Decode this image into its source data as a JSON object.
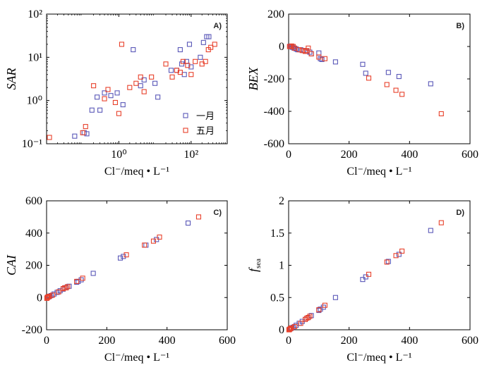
{
  "colors": {
    "jan": "#5a58b8",
    "may": "#e8412b",
    "axis": "#000000"
  },
  "chart_data": [
    {
      "id": "A",
      "type": "scatter",
      "panel_label": "A)",
      "ylabel": "SAR",
      "xlabel": "Cl⁻/meq • L⁻¹",
      "xscale": "log",
      "yscale": "log",
      "xlim": [
        0.01,
        1000
      ],
      "ylim": [
        0.1,
        100
      ],
      "xticks": [
        1,
        100
      ],
      "xtick_labels": [
        "10⁰",
        "10²"
      ],
      "yticks": [
        0.1,
        1,
        10,
        100
      ],
      "ytick_labels": [
        "10⁻¹",
        "10⁰",
        "10¹",
        "10²"
      ],
      "legend_position": "bottom-right",
      "series": [
        {
          "name": "一月",
          "color": "#5a58b8",
          "x": [
            0.06,
            0.11,
            0.13,
            0.18,
            0.25,
            0.3,
            0.4,
            0.6,
            0.9,
            1.3,
            2.5,
            4,
            5,
            10,
            12,
            28,
            40,
            50,
            55,
            65,
            75,
            90,
            100,
            180,
            220,
            270,
            310
          ],
          "y": [
            0.15,
            0.18,
            0.17,
            0.6,
            1.2,
            0.6,
            1.5,
            1.3,
            1.5,
            0.8,
            15,
            2.2,
            3,
            2.5,
            1.2,
            5,
            5,
            15,
            7,
            4,
            8,
            20,
            6,
            10,
            22,
            30,
            30
          ]
        },
        {
          "name": "五月",
          "color": "#e8412b",
          "x": [
            0.012,
            0.1,
            0.12,
            0.2,
            0.4,
            0.5,
            0.8,
            1,
            1.2,
            2,
            3,
            4,
            5,
            8,
            20,
            30,
            40,
            50,
            60,
            80,
            100,
            130,
            200,
            250,
            300,
            350,
            450
          ],
          "y": [
            0.14,
            0.18,
            0.25,
            2.2,
            1.1,
            1.8,
            0.9,
            0.5,
            20,
            2,
            2.5,
            3.5,
            1.6,
            3.5,
            7,
            3.5,
            5,
            4.5,
            8,
            6.5,
            4,
            8,
            7,
            8,
            15,
            17,
            20
          ]
        }
      ]
    },
    {
      "id": "B",
      "type": "scatter",
      "panel_label": "B)",
      "ylabel": "BEX",
      "xlabel": "Cl⁻/meq • L⁻¹",
      "xlim": [
        0,
        600
      ],
      "ylim": [
        -600,
        200
      ],
      "xticks": [
        0,
        200,
        400,
        600
      ],
      "yticks": [
        200,
        0,
        -200,
        -400,
        -600
      ],
      "series": [
        {
          "name": "一月",
          "color": "#5a58b8",
          "x": [
            5,
            8,
            12,
            18,
            25,
            30,
            40,
            50,
            60,
            70,
            75,
            100,
            105,
            110,
            155,
            245,
            255,
            330,
            365,
            470
          ],
          "y": [
            2,
            0,
            -5,
            -10,
            -15,
            -20,
            -20,
            -25,
            -30,
            -35,
            -45,
            -40,
            -75,
            -80,
            -95,
            -110,
            -165,
            -160,
            -185,
            -230
          ]
        },
        {
          "name": "五月",
          "color": "#e8412b",
          "x": [
            3,
            6,
            10,
            15,
            20,
            35,
            45,
            55,
            60,
            65,
            75,
            100,
            120,
            265,
            325,
            355,
            375,
            505
          ],
          "y": [
            0,
            0,
            3,
            0,
            -10,
            -20,
            -25,
            -30,
            -25,
            -10,
            -45,
            -65,
            -75,
            -195,
            -235,
            -270,
            -295,
            -415
          ]
        }
      ]
    },
    {
      "id": "C",
      "type": "scatter",
      "panel_label": "C)",
      "ylabel": "CAI",
      "xlabel": "Cl⁻/meq • L⁻¹",
      "xlim": [
        0,
        600
      ],
      "ylim": [
        -200,
        600
      ],
      "xticks": [
        0,
        200,
        400,
        600
      ],
      "yticks": [
        600,
        400,
        200,
        0,
        -200
      ],
      "series": [
        {
          "name": "一月",
          "color": "#5a58b8",
          "x": [
            3,
            8,
            15,
            25,
            35,
            45,
            55,
            65,
            75,
            100,
            105,
            115,
            155,
            245,
            255,
            330,
            365,
            470
          ],
          "y": [
            2,
            5,
            12,
            22,
            32,
            42,
            52,
            62,
            70,
            95,
            100,
            110,
            150,
            245,
            255,
            325,
            360,
            462
          ]
        },
        {
          "name": "五月",
          "color": "#e8412b",
          "x": [
            1,
            2,
            4,
            6,
            10,
            20,
            40,
            55,
            60,
            65,
            70,
            100,
            120,
            265,
            325,
            355,
            375,
            505
          ],
          "y": [
            -5,
            0,
            2,
            5,
            8,
            15,
            35,
            55,
            60,
            60,
            68,
            100,
            120,
            265,
            325,
            350,
            375,
            500
          ]
        }
      ]
    },
    {
      "id": "D",
      "type": "scatter",
      "panel_label": "D)",
      "ylabel": "f",
      "ylabel_sub": "sea",
      "xlabel": "Cl⁻/meq • L⁻¹",
      "xlim": [
        0,
        600
      ],
      "ylim": [
        0,
        2
      ],
      "xticks": [
        0,
        200,
        400,
        600
      ],
      "ytick_values": [
        2,
        1.5,
        1,
        0.5,
        0
      ],
      "ytick_labels": [
        "2",
        "1.5",
        "1",
        "0.5",
        "0"
      ],
      "series": [
        {
          "name": "一月",
          "color": "#5a58b8",
          "x": [
            3,
            8,
            15,
            25,
            35,
            45,
            55,
            65,
            75,
            100,
            105,
            115,
            155,
            245,
            255,
            330,
            365,
            470
          ],
          "y": [
            0.01,
            0.02,
            0.04,
            0.07,
            0.1,
            0.13,
            0.16,
            0.19,
            0.22,
            0.3,
            0.32,
            0.35,
            0.5,
            0.78,
            0.82,
            1.06,
            1.17,
            1.54
          ]
        },
        {
          "name": "五月",
          "color": "#e8412b",
          "x": [
            1,
            2,
            4,
            6,
            10,
            20,
            40,
            55,
            60,
            65,
            70,
            100,
            120,
            265,
            325,
            355,
            375,
            505
          ],
          "y": [
            0,
            0,
            0.01,
            0.02,
            0.03,
            0.05,
            0.1,
            0.16,
            0.18,
            0.19,
            0.21,
            0.31,
            0.38,
            0.86,
            1.05,
            1.15,
            1.22,
            1.66
          ]
        }
      ]
    }
  ]
}
